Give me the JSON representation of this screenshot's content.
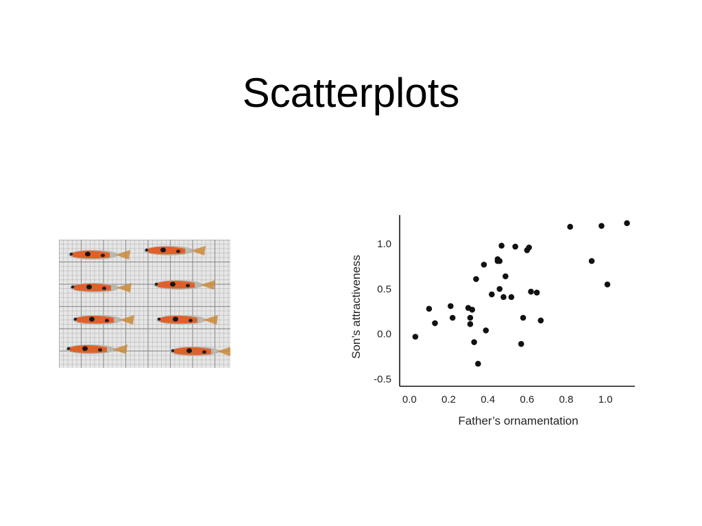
{
  "slide": {
    "title": "Scatterplots"
  },
  "photo": {
    "subject": "guppy fish on grid paper",
    "fish_count": 8
  },
  "colors": {
    "point": "#111111",
    "axis": "#111111",
    "grid_bg": "#e6e6e6",
    "grid_line": "#8a8a8a",
    "fish_orange": "#e0602a",
    "fish_body": "#b8b8b0"
  },
  "chart_data": {
    "type": "scatter",
    "title": "",
    "xlabel": "Father’s ornamentation",
    "ylabel": "Son’s attractiveness",
    "xlim": [
      -0.05,
      1.15
    ],
    "ylim": [
      -0.58,
      1.32
    ],
    "grid": false,
    "xticks": [
      0.0,
      0.2,
      0.4,
      0.6,
      0.8,
      1.0
    ],
    "yticks": [
      -0.5,
      0.0,
      0.5,
      1.0
    ],
    "xtick_labels": [
      "0.0",
      "0.2",
      "0.4",
      "0.6",
      "0.8",
      "1.0"
    ],
    "ytick_labels": [
      "-0.5",
      "0.0",
      "0.5",
      "1.0"
    ],
    "points": [
      {
        "x": 0.03,
        "y": -0.03
      },
      {
        "x": 0.1,
        "y": 0.28
      },
      {
        "x": 0.13,
        "y": 0.12
      },
      {
        "x": 0.21,
        "y": 0.31
      },
      {
        "x": 0.22,
        "y": 0.18
      },
      {
        "x": 0.3,
        "y": 0.29
      },
      {
        "x": 0.31,
        "y": 0.18
      },
      {
        "x": 0.31,
        "y": 0.11
      },
      {
        "x": 0.32,
        "y": 0.27
      },
      {
        "x": 0.33,
        "y": -0.09
      },
      {
        "x": 0.34,
        "y": 0.61
      },
      {
        "x": 0.35,
        "y": -0.33
      },
      {
        "x": 0.38,
        "y": 0.77
      },
      {
        "x": 0.39,
        "y": 0.04
      },
      {
        "x": 0.42,
        "y": 0.44
      },
      {
        "x": 0.45,
        "y": 0.81
      },
      {
        "x": 0.45,
        "y": 0.83
      },
      {
        "x": 0.46,
        "y": 0.5
      },
      {
        "x": 0.46,
        "y": 0.81
      },
      {
        "x": 0.47,
        "y": 0.98
      },
      {
        "x": 0.48,
        "y": 0.41
      },
      {
        "x": 0.49,
        "y": 0.64
      },
      {
        "x": 0.52,
        "y": 0.41
      },
      {
        "x": 0.54,
        "y": 0.97
      },
      {
        "x": 0.57,
        "y": -0.11
      },
      {
        "x": 0.58,
        "y": 0.18
      },
      {
        "x": 0.6,
        "y": 0.93
      },
      {
        "x": 0.61,
        "y": 0.96
      },
      {
        "x": 0.62,
        "y": 0.47
      },
      {
        "x": 0.65,
        "y": 0.46
      },
      {
        "x": 0.67,
        "y": 0.15
      },
      {
        "x": 0.82,
        "y": 1.19
      },
      {
        "x": 0.93,
        "y": 0.81
      },
      {
        "x": 0.98,
        "y": 1.2
      },
      {
        "x": 1.01,
        "y": 0.55
      },
      {
        "x": 1.11,
        "y": 1.23
      }
    ]
  }
}
